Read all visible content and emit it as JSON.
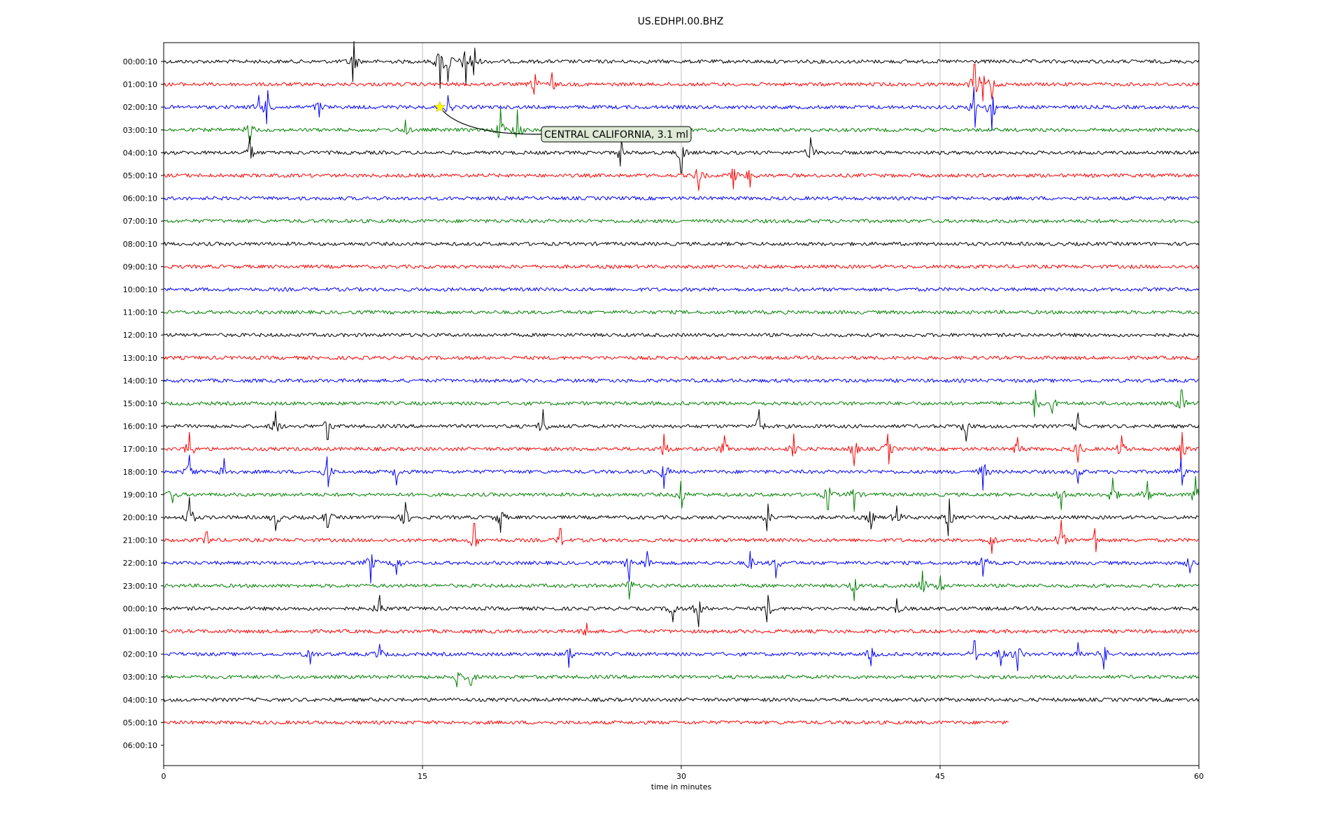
{
  "chart_data": {
    "type": "line",
    "title": "US.EDHPI.00.BHZ",
    "xlabel": "time in minutes",
    "ylabel": "",
    "xlim": [
      0,
      60
    ],
    "x_ticks": [
      0,
      15,
      30,
      45,
      60
    ],
    "grid": "vertical",
    "row_colors": [
      "#000000",
      "#ff0000",
      "#0000ff",
      "#008000"
    ],
    "rows": [
      {
        "label": "00:00:10",
        "end_minute": 60,
        "events": [
          {
            "t": 11,
            "a": 1.2
          },
          {
            "t": 16,
            "a": 1.6
          },
          {
            "t": 16.5,
            "a": 1.2
          },
          {
            "t": 17.5,
            "a": 1.4
          },
          {
            "t": 18,
            "a": 0.8
          }
        ]
      },
      {
        "label": "01:00:10",
        "end_minute": 60,
        "events": [
          {
            "t": 21.5,
            "a": 0.6
          },
          {
            "t": 22.5,
            "a": 0.7
          },
          {
            "t": 47,
            "a": 1.2
          },
          {
            "t": 47.5,
            "a": 1.0
          },
          {
            "t": 48,
            "a": 0.9
          }
        ]
      },
      {
        "label": "02:00:10",
        "end_minute": 60,
        "events": [
          {
            "t": 5.5,
            "a": 0.7
          },
          {
            "t": 6,
            "a": 1.0
          },
          {
            "t": 9,
            "a": 0.6
          },
          {
            "t": 16.5,
            "a": 0.7
          },
          {
            "t": 47,
            "a": 1.2
          },
          {
            "t": 48,
            "a": 1.4
          }
        ]
      },
      {
        "label": "03:00:10",
        "end_minute": 60,
        "events": [
          {
            "t": 5,
            "a": 0.8
          },
          {
            "t": 14,
            "a": 0.6
          },
          {
            "t": 19.5,
            "a": 1.3
          },
          {
            "t": 20.5,
            "a": 1.2
          }
        ]
      },
      {
        "label": "04:00:10",
        "end_minute": 60,
        "events": [
          {
            "t": 5,
            "a": 1.0
          },
          {
            "t": 26.5,
            "a": 0.8
          },
          {
            "t": 30,
            "a": 1.2
          },
          {
            "t": 37.5,
            "a": 0.9
          }
        ]
      },
      {
        "label": "05:00:10",
        "end_minute": 60,
        "events": [
          {
            "t": 31,
            "a": 0.9
          },
          {
            "t": 33,
            "a": 0.8
          },
          {
            "t": 34,
            "a": 0.7
          }
        ]
      },
      {
        "label": "06:00:10",
        "end_minute": 60,
        "events": []
      },
      {
        "label": "07:00:10",
        "end_minute": 60,
        "events": []
      },
      {
        "label": "08:00:10",
        "end_minute": 60,
        "events": []
      },
      {
        "label": "09:00:10",
        "end_minute": 60,
        "events": []
      },
      {
        "label": "10:00:10",
        "end_minute": 60,
        "events": []
      },
      {
        "label": "11:00:10",
        "end_minute": 60,
        "events": []
      },
      {
        "label": "12:00:10",
        "end_minute": 60,
        "events": []
      },
      {
        "label": "13:00:10",
        "end_minute": 60,
        "events": []
      },
      {
        "label": "14:00:10",
        "end_minute": 60,
        "events": []
      },
      {
        "label": "15:00:10",
        "end_minute": 60,
        "events": [
          {
            "t": 50.5,
            "a": 0.8
          },
          {
            "t": 51.5,
            "a": 0.6
          },
          {
            "t": 59,
            "a": 0.8
          }
        ]
      },
      {
        "label": "16:00:10",
        "end_minute": 60,
        "events": [
          {
            "t": 6.5,
            "a": 0.9
          },
          {
            "t": 9.5,
            "a": 0.8
          },
          {
            "t": 22,
            "a": 1.0
          },
          {
            "t": 34.5,
            "a": 1.0
          },
          {
            "t": 46.5,
            "a": 0.9
          },
          {
            "t": 53,
            "a": 0.8
          }
        ]
      },
      {
        "label": "17:00:10",
        "end_minute": 60,
        "events": [
          {
            "t": 1.5,
            "a": 1.0
          },
          {
            "t": 29,
            "a": 0.9
          },
          {
            "t": 32.5,
            "a": 0.8
          },
          {
            "t": 36.5,
            "a": 0.9
          },
          {
            "t": 40,
            "a": 1.0
          },
          {
            "t": 42,
            "a": 0.9
          },
          {
            "t": 49.5,
            "a": 0.7
          },
          {
            "t": 53,
            "a": 0.8
          },
          {
            "t": 55.5,
            "a": 0.8
          },
          {
            "t": 59,
            "a": 1.0
          }
        ]
      },
      {
        "label": "18:00:10",
        "end_minute": 60,
        "events": [
          {
            "t": 1.5,
            "a": 1.0
          },
          {
            "t": 3.5,
            "a": 0.8
          },
          {
            "t": 9.5,
            "a": 0.9
          },
          {
            "t": 13.5,
            "a": 0.8
          },
          {
            "t": 29,
            "a": 1.0
          },
          {
            "t": 47.5,
            "a": 1.1
          },
          {
            "t": 53,
            "a": 0.7
          },
          {
            "t": 59,
            "a": 0.8
          }
        ]
      },
      {
        "label": "19:00:10",
        "end_minute": 60,
        "events": [
          {
            "t": 0.5,
            "a": 0.5
          },
          {
            "t": 30,
            "a": 0.8
          },
          {
            "t": 38.5,
            "a": 0.9
          },
          {
            "t": 40,
            "a": 1.0
          },
          {
            "t": 52,
            "a": 0.9
          },
          {
            "t": 55,
            "a": 1.0
          },
          {
            "t": 57,
            "a": 0.8
          },
          {
            "t": 59.8,
            "a": 1.1
          }
        ]
      },
      {
        "label": "20:00:10",
        "end_minute": 60,
        "events": [
          {
            "t": 1.5,
            "a": 1.2
          },
          {
            "t": 6.5,
            "a": 0.8
          },
          {
            "t": 9.5,
            "a": 0.6
          },
          {
            "t": 14,
            "a": 0.9
          },
          {
            "t": 19.5,
            "a": 0.9
          },
          {
            "t": 35,
            "a": 0.8
          },
          {
            "t": 41,
            "a": 0.7
          },
          {
            "t": 42.5,
            "a": 0.7
          },
          {
            "t": 45.5,
            "a": 1.1
          }
        ]
      },
      {
        "label": "21:00:10",
        "end_minute": 60,
        "events": [
          {
            "t": 2.5,
            "a": 0.5
          },
          {
            "t": 18,
            "a": 1.0
          },
          {
            "t": 23,
            "a": 0.7
          },
          {
            "t": 48,
            "a": 0.8
          },
          {
            "t": 52,
            "a": 1.2
          },
          {
            "t": 54,
            "a": 0.7
          }
        ]
      },
      {
        "label": "22:00:10",
        "end_minute": 60,
        "events": [
          {
            "t": 12,
            "a": 1.2
          },
          {
            "t": 13.5,
            "a": 0.7
          },
          {
            "t": 27,
            "a": 1.1
          },
          {
            "t": 28,
            "a": 0.7
          },
          {
            "t": 34,
            "a": 0.7
          },
          {
            "t": 35.5,
            "a": 0.9
          },
          {
            "t": 47.5,
            "a": 0.8
          },
          {
            "t": 59.5,
            "a": 0.6
          }
        ]
      },
      {
        "label": "23:00:10",
        "end_minute": 60,
        "events": [
          {
            "t": 27,
            "a": 0.8
          },
          {
            "t": 40,
            "a": 0.9
          },
          {
            "t": 44,
            "a": 0.9
          },
          {
            "t": 45,
            "a": 0.6
          }
        ]
      },
      {
        "label": "00:00:10",
        "end_minute": 60,
        "events": [
          {
            "t": 12.5,
            "a": 0.8
          },
          {
            "t": 29.5,
            "a": 0.8
          },
          {
            "t": 31,
            "a": 1.1
          },
          {
            "t": 35,
            "a": 0.8
          },
          {
            "t": 42.5,
            "a": 0.6
          }
        ]
      },
      {
        "label": "01:00:10",
        "end_minute": 60,
        "events": [
          {
            "t": 24.5,
            "a": 0.5
          }
        ]
      },
      {
        "label": "02:00:10",
        "end_minute": 60,
        "events": [
          {
            "t": 8.5,
            "a": 0.6
          },
          {
            "t": 12.5,
            "a": 0.6
          },
          {
            "t": 23.5,
            "a": 0.8
          },
          {
            "t": 41,
            "a": 0.7
          },
          {
            "t": 47,
            "a": 0.8
          },
          {
            "t": 48.5,
            "a": 0.7
          },
          {
            "t": 49.5,
            "a": 1.0
          },
          {
            "t": 53,
            "a": 0.7
          },
          {
            "t": 54.5,
            "a": 0.9
          }
        ]
      },
      {
        "label": "03:00:10",
        "end_minute": 60,
        "events": [
          {
            "t": 17,
            "a": 0.6
          },
          {
            "t": 17.8,
            "a": 0.5
          }
        ]
      },
      {
        "label": "04:00:10",
        "end_minute": 60,
        "events": []
      },
      {
        "label": "05:00:10",
        "end_minute": 49,
        "events": []
      },
      {
        "label": "06:00:10",
        "end_minute": 0,
        "events": []
      }
    ],
    "annotation": {
      "text": "CENTRAL CALIFORNIA, 3.1 ml",
      "row_index": 2,
      "minute": 16,
      "marker": "star",
      "marker_color": "#ffff00",
      "box_color": "#dde8d5"
    }
  }
}
